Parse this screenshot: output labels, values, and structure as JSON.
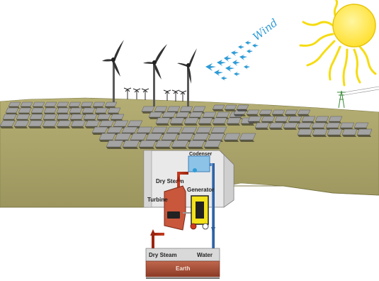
{
  "labels": {
    "wind": "Wind",
    "condenser": "Codenser",
    "dry_steam_top": "Dry Steam",
    "generator": "Generator",
    "turbine": "Turbine",
    "dry_steam_bottom": "Dry Steam",
    "water": "Water",
    "earth": "Earth"
  },
  "colors": {
    "sun": "#ffe54a",
    "sun_rays": "#f5dc12",
    "wind_arrows": "#2f9bd6",
    "ground": "#a8a268",
    "solar_panel": "#9b9b9b",
    "hot_pipe": "#d23a1e",
    "cold_pipe": "#4a82c8",
    "turbine_body": "#c9573c",
    "generator_box": "#f4e21a",
    "condenser_box": "#8ec3e8",
    "earth_layer": "#a8503a"
  }
}
